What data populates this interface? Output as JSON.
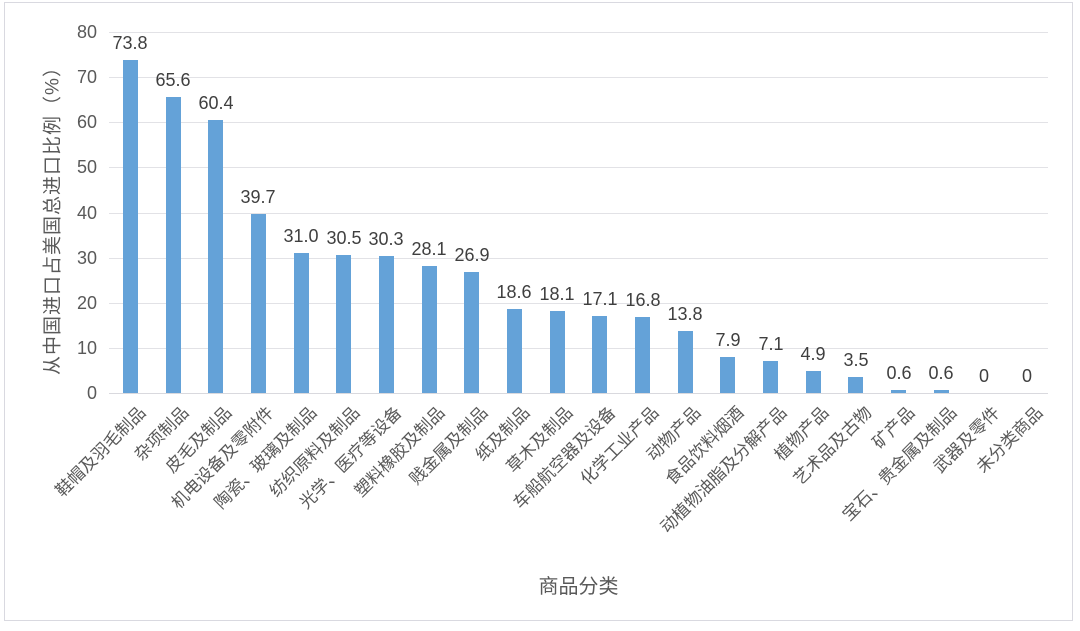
{
  "chart_data": {
    "type": "bar",
    "title": "",
    "xlabel": "商品分类",
    "ylabel": "从中国进口占美国总进口比例（%）",
    "categories": [
      "鞋帽及羽毛制品",
      "杂项制品",
      "皮毛及制品",
      "机电设备及零附件",
      "陶瓷、玻璃及制品",
      "纺织原料及制品",
      "光学、医疗等设备",
      "塑料橡胶及制品",
      "贱金属及制品",
      "纸及制品",
      "草木及制品",
      "车船航空器及设备",
      "化学工业产品",
      "动物产品",
      "食品饮料烟酒",
      "动植物油脂及分解产品",
      "植物产品",
      "艺术品及古物",
      "矿产品",
      "宝石、贵金属及制品",
      "武器及零件",
      "未分类商品"
    ],
    "values": [
      73.8,
      65.6,
      60.4,
      39.7,
      31.0,
      30.5,
      30.3,
      28.1,
      26.9,
      18.6,
      18.1,
      17.1,
      16.8,
      13.8,
      7.9,
      7.1,
      4.9,
      3.5,
      0.6,
      0.6,
      0,
      0
    ],
    "value_labels": [
      "73.8",
      "65.6",
      "60.4",
      "39.7",
      "31.0",
      "30.5",
      "30.3",
      "28.1",
      "26.9",
      "18.6",
      "18.1",
      "17.1",
      "16.8",
      "13.8",
      "7.9",
      "7.1",
      "4.9",
      "3.5",
      "0.6",
      "0.6",
      "0",
      "0"
    ],
    "ylim": [
      0,
      80
    ],
    "yticks": [
      0,
      10,
      20,
      30,
      40,
      50,
      60,
      70,
      80
    ],
    "grid": true,
    "legend": false,
    "colors": {
      "bar": "#64a2d8",
      "gridline": "#e2e2e6",
      "value_label": "#3f3f3f",
      "axis_text": "#595959",
      "frame_border": "#d9d9e0",
      "background": "#ffffff"
    }
  }
}
